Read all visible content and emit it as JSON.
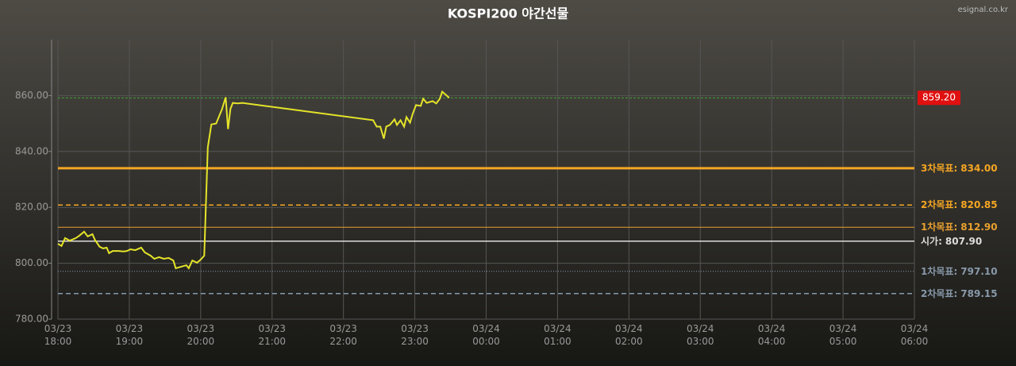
{
  "chart_data": {
    "type": "line",
    "title": "KOSPI200 야간선물",
    "source": "esignal.co.kr",
    "x": [
      "03/23 18:00",
      "03/23 18:03",
      "03/23 18:06",
      "03/23 18:10",
      "03/23 18:15",
      "03/23 18:18",
      "03/23 18:22",
      "03/23 18:25",
      "03/23 18:29",
      "03/23 18:31",
      "03/23 18:35",
      "03/23 18:38",
      "03/23 18:41",
      "03/23 18:43",
      "03/23 18:46",
      "03/23 18:51",
      "03/23 18:55",
      "03/23 18:58",
      "03/23 19:01",
      "03/23 19:05",
      "03/23 19:10",
      "03/23 19:13",
      "03/23 19:18",
      "03/23 19:21",
      "03/23 19:25",
      "03/23 19:29",
      "03/23 19:33",
      "03/23 19:37",
      "03/23 19:39",
      "03/23 19:43",
      "03/23 19:48",
      "03/23 19:50",
      "03/23 19:53",
      "03/23 19:57",
      "03/23 20:00",
      "03/23 20:03",
      "03/23 20:06",
      "03/23 20:09",
      "03/23 20:13",
      "03/23 20:18",
      "03/23 20:21",
      "03/23 20:23",
      "03/23 20:25",
      "03/23 20:27",
      "03/23 20:31",
      "03/23 20:35",
      "03/23 22:25",
      "03/23 22:28",
      "03/23 22:31",
      "03/23 22:34",
      "03/23 22:36",
      "03/23 22:39",
      "03/23 22:43",
      "03/23 22:45",
      "03/23 22:48",
      "03/23 22:51",
      "03/23 22:53",
      "03/23 22:56",
      "03/23 22:58",
      "03/23 23:01",
      "03/23 23:05",
      "03/23 23:07",
      "03/23 23:10",
      "03/23 23:15",
      "03/23 23:18",
      "03/23 23:21",
      "03/23 23:23",
      "03/23 23:26",
      "03/23 23:29"
    ],
    "values": [
      807.0,
      806.2,
      809.0,
      808.1,
      809.0,
      809.9,
      811.3,
      809.6,
      810.4,
      808.4,
      805.9,
      805.3,
      805.6,
      803.6,
      804.4,
      804.4,
      804.2,
      804.4,
      805.0,
      804.7,
      805.6,
      803.9,
      802.7,
      801.6,
      802.2,
      801.6,
      801.9,
      801.0,
      798.2,
      798.7,
      799.3,
      798.2,
      801.0,
      800.2,
      801.3,
      802.7,
      841.5,
      849.7,
      850.0,
      855.2,
      859.4,
      848.0,
      855.2,
      857.4,
      857.2,
      857.4,
      851.2,
      848.9,
      848.9,
      844.6,
      848.9,
      849.5,
      851.5,
      849.5,
      851.2,
      848.9,
      852.3,
      850.3,
      853.2,
      856.6,
      856.3,
      858.9,
      857.4,
      858.0,
      857.2,
      858.9,
      861.4,
      860.3,
      859.2
    ],
    "color": "#e4e42a",
    "xlim": [
      "03/23 18:00",
      "03/24 06:00"
    ],
    "xticks": [
      "03/23 18:00",
      "03/23 19:00",
      "03/23 20:00",
      "03/23 21:00",
      "03/23 22:00",
      "03/23 23:00",
      "03/24 00:00",
      "03/24 01:00",
      "03/24 02:00",
      "03/24 03:00",
      "03/24 04:00",
      "03/24 05:00",
      "03/24 06:00"
    ],
    "ylim": [
      780,
      880
    ],
    "yticks": [
      {
        "value": 780,
        "label": "780.00"
      },
      {
        "value": 800,
        "label": "800.00"
      },
      {
        "value": 820,
        "label": "820.00"
      },
      {
        "value": 840,
        "label": "840.00"
      },
      {
        "value": 860,
        "label": "860.00"
      }
    ],
    "grid": true,
    "reference_lines": [
      {
        "value": 859.2,
        "value_label": "859.20",
        "color": "#3cc43c",
        "style": "dashed",
        "badge": "#e01010"
      },
      {
        "label": "3차목표:",
        "value": 834,
        "value_label": "834.00",
        "color": "#f5a623",
        "style": "thick"
      },
      {
        "label": "2차목표:",
        "value": 820.85,
        "value_label": "820.85",
        "color": "#f5a623",
        "style": "dashed"
      },
      {
        "label": "1차목표:",
        "value": 812.9,
        "value_label": "812.90",
        "color": "#e8a030",
        "style": "thin"
      },
      {
        "label": "시가:",
        "value": 807.9,
        "value_label": "807.90",
        "color": "#dddddd",
        "style": "solid"
      },
      {
        "label": "1차목표:",
        "value": 797.1,
        "value_label": "797.10",
        "color": "#8899aa",
        "style": "dotted"
      },
      {
        "label": "2차목표:",
        "value": 789.15,
        "value_label": "789.15",
        "color": "#8899aa",
        "style": "dashed"
      }
    ]
  }
}
